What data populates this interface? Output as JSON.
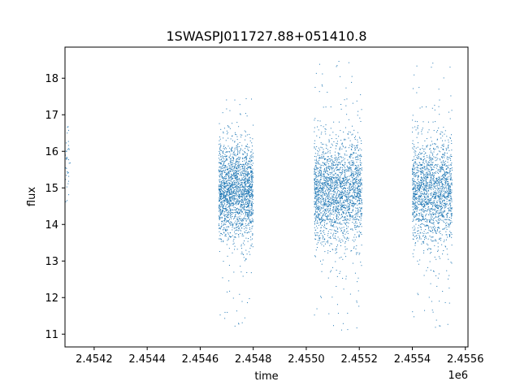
{
  "chart_data": {
    "type": "scatter",
    "title": "1SWASPJ011727.88+051410.8",
    "xlabel": "time",
    "ylabel": "flux",
    "x_offset_label": "1e6",
    "x_scale": 1000000,
    "xlim": [
      2.45409,
      2.45561
    ],
    "ylim": [
      10.65,
      18.85
    ],
    "x_ticks": [
      2.4542,
      2.4544,
      2.4546,
      2.4548,
      2.455,
      2.4552,
      2.4554,
      2.4556
    ],
    "x_tick_labels": [
      "2.4542",
      "2.4544",
      "2.4546",
      "2.4548",
      "2.4550",
      "2.4552",
      "2.4554",
      "2.4556"
    ],
    "y_ticks": [
      11,
      12,
      13,
      14,
      15,
      16,
      17,
      18
    ],
    "y_tick_labels": [
      "11",
      "12",
      "13",
      "14",
      "15",
      "16",
      "17",
      "18"
    ],
    "grid": false,
    "marker_color": "#1f77b4",
    "clusters": [
      {
        "x_range": [
          2.45409,
          2.45411
        ],
        "y_center": 15.6,
        "y_spread": 0.7,
        "y_range": [
          14.5,
          16.7
        ],
        "approx_points": 40
      },
      {
        "x_range": [
          2.45467,
          2.4548
        ],
        "y_center": 14.9,
        "y_spread": 0.65,
        "y_range": [
          11.2,
          17.6
        ],
        "approx_points": 2000
      },
      {
        "x_range": [
          2.45503,
          2.45521
        ],
        "y_center": 14.9,
        "y_spread": 0.7,
        "y_range": [
          11.0,
          18.55
        ],
        "approx_points": 2200
      },
      {
        "x_range": [
          2.4554,
          2.45555
        ],
        "y_center": 14.9,
        "y_spread": 0.7,
        "y_range": [
          11.1,
          18.5
        ],
        "approx_points": 1800
      }
    ]
  }
}
